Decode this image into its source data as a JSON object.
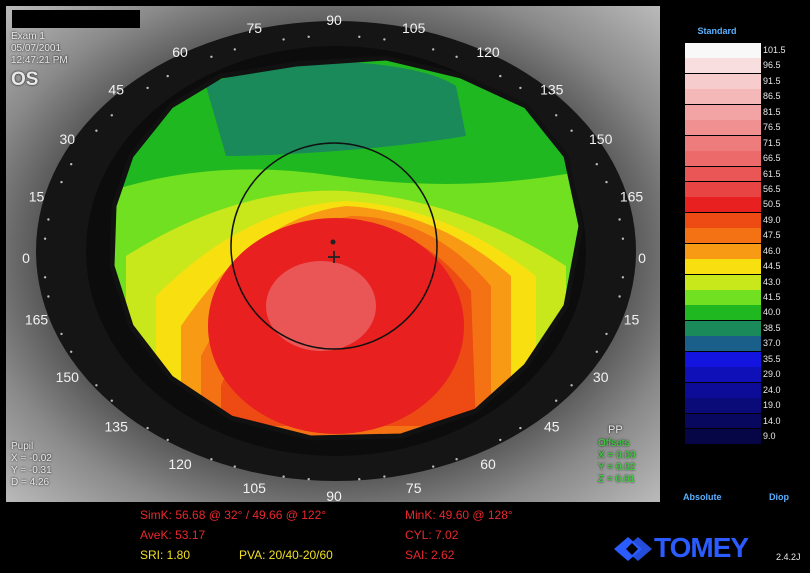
{
  "exam": {
    "name": "Exam 1",
    "date": "05/07/2001",
    "time": "12:47:21 PM",
    "eye": "OS"
  },
  "pupil": {
    "title": "Pupil",
    "x": "X = -0.02",
    "y": "Y = -0.31",
    "d": "D = 4.26"
  },
  "offsets": {
    "pp": "PP",
    "title": "Offsets",
    "x": "X = 0.00",
    "y": "Y = 0.02",
    "z": "Z = 0.01"
  },
  "axis_labels": [
    "0",
    "15",
    "30",
    "45",
    "60",
    "75",
    "90",
    "105",
    "120",
    "135",
    "150",
    "165",
    "0",
    "15",
    "30",
    "45",
    "60",
    "75",
    "90",
    "105",
    "120",
    "135",
    "150",
    "165"
  ],
  "scale": {
    "title": "Standard",
    "footer_left": "Absolute",
    "footer_right": "Diop",
    "items": [
      {
        "label": "101.5",
        "color": "#f8f8f8"
      },
      {
        "label": "96.5",
        "color": "#f8dede"
      },
      {
        "label": "91.5",
        "color": "#f6cccc"
      },
      {
        "label": "86.5",
        "color": "#f4b8b8"
      },
      {
        "label": "81.5",
        "color": "#f2a4a4"
      },
      {
        "label": "76.5",
        "color": "#f09090"
      },
      {
        "label": "71.5",
        "color": "#ee7c7c"
      },
      {
        "label": "66.5",
        "color": "#ec6a6a"
      },
      {
        "label": "61.5",
        "color": "#ea5656"
      },
      {
        "label": "56.5",
        "color": "#e84444"
      },
      {
        "label": "50.5",
        "color": "#e82020"
      },
      {
        "label": "49.0",
        "color": "#ee4a14"
      },
      {
        "label": "47.5",
        "color": "#f47214"
      },
      {
        "label": "46.0",
        "color": "#f89a14"
      },
      {
        "label": "44.5",
        "color": "#f8e010"
      },
      {
        "label": "43.0",
        "color": "#c8e81c"
      },
      {
        "label": "41.5",
        "color": "#70e020"
      },
      {
        "label": "40.0",
        "color": "#20b820"
      },
      {
        "label": "38.5",
        "color": "#1a8a5a"
      },
      {
        "label": "37.0",
        "color": "#1a5e8a"
      },
      {
        "label": "35.5",
        "color": "#1414e0"
      },
      {
        "label": "29.0",
        "color": "#1010b8"
      },
      {
        "label": "24.0",
        "color": "#0c0c98"
      },
      {
        "label": "19.0",
        "color": "#0a0a78"
      },
      {
        "label": "14.0",
        "color": "#08085e"
      },
      {
        "label": "9.0",
        "color": "#060646"
      }
    ]
  },
  "indices": {
    "simk": "SimK: 56.68 @ 32° / 49.66 @ 122°",
    "avek": "AveK: 53.17",
    "sri": "SRI: 1.80",
    "pva": "PVA: 20/40-20/60",
    "mink": "MinK: 49.60 @ 128°",
    "cyl": "CYL: 7.02",
    "sai": "SAI: 2.62"
  },
  "brand": {
    "logo": "TOMEY",
    "version": "2.4.2J"
  }
}
